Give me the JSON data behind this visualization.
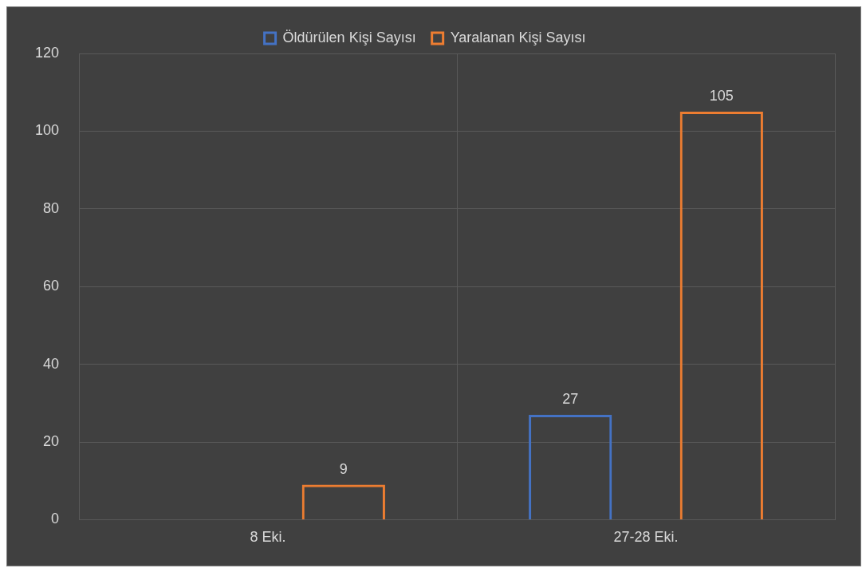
{
  "chart_data": {
    "type": "bar",
    "categories": [
      "8 Eki.",
      "27-28 Eki."
    ],
    "series": [
      {
        "name": "Öldürülen Kişi Sayısı",
        "color": "#4472c4",
        "values": [
          null,
          27
        ]
      },
      {
        "name": "Yaralanan Kişi Sayısı",
        "color": "#ed7d31",
        "values": [
          9,
          105
        ]
      }
    ],
    "ylim": [
      0,
      120
    ],
    "yticks": [
      0,
      20,
      40,
      60,
      80,
      100,
      120
    ],
    "grid": true,
    "legend": "top",
    "data_labels": true
  }
}
